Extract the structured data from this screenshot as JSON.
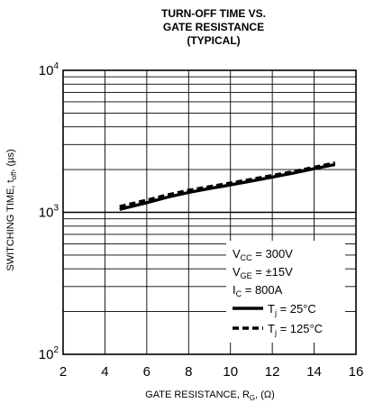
{
  "chart_data": {
    "type": "line",
    "title_lines": [
      "TURN-OFF TIME VS.",
      "GATE RESISTANCE",
      "(TYPICAL)"
    ],
    "xlabel": {
      "main": "GATE RESISTANCE, R",
      "sub": "G",
      "unit": ", (Ω)"
    },
    "ylabel": {
      "main": "SWITCHING TIME, t",
      "sub": "off",
      "unit": ", (µs)"
    },
    "x_scale": "linear",
    "y_scale": "log",
    "xlim": [
      2,
      16
    ],
    "ylim": [
      100,
      10000
    ],
    "x_ticks": [
      2,
      4,
      6,
      8,
      10,
      12,
      14,
      16
    ],
    "x_tick_labels": [
      "2",
      "4",
      "6",
      "8",
      "10",
      "12",
      "14",
      "16"
    ],
    "y_ticks": [
      {
        "value": 100,
        "base": "10",
        "exp": "2"
      },
      {
        "value": 1000,
        "base": "10",
        "exp": "3"
      },
      {
        "value": 10000,
        "base": "10",
        "exp": "4"
      }
    ],
    "grid": true,
    "legend_position": "bottom-right",
    "conditions": [
      {
        "main": "V",
        "sub": "CC",
        "rest": " = 300V"
      },
      {
        "main": "V",
        "sub": "GE",
        "rest": " = ±15V"
      },
      {
        "main": "I",
        "sub": "C",
        "rest": " = 800A"
      }
    ],
    "series": [
      {
        "name": "T",
        "name_sub": "j",
        "name_rest": " = 25°C",
        "style": "solid",
        "x": [
          4.7,
          6,
          7,
          8,
          9,
          10,
          11,
          12,
          13,
          14,
          15
        ],
        "y": [
          1050,
          1170,
          1280,
          1380,
          1470,
          1560,
          1660,
          1770,
          1890,
          2030,
          2170
        ]
      },
      {
        "name": "T",
        "name_sub": "j",
        "name_rest": " = 125°C",
        "style": "dashed",
        "x": [
          4.7,
          6,
          7,
          8,
          9,
          10,
          11,
          12,
          13,
          14,
          15
        ],
        "y": [
          1100,
          1220,
          1330,
          1430,
          1520,
          1610,
          1710,
          1820,
          1940,
          2080,
          2230
        ]
      }
    ]
  }
}
